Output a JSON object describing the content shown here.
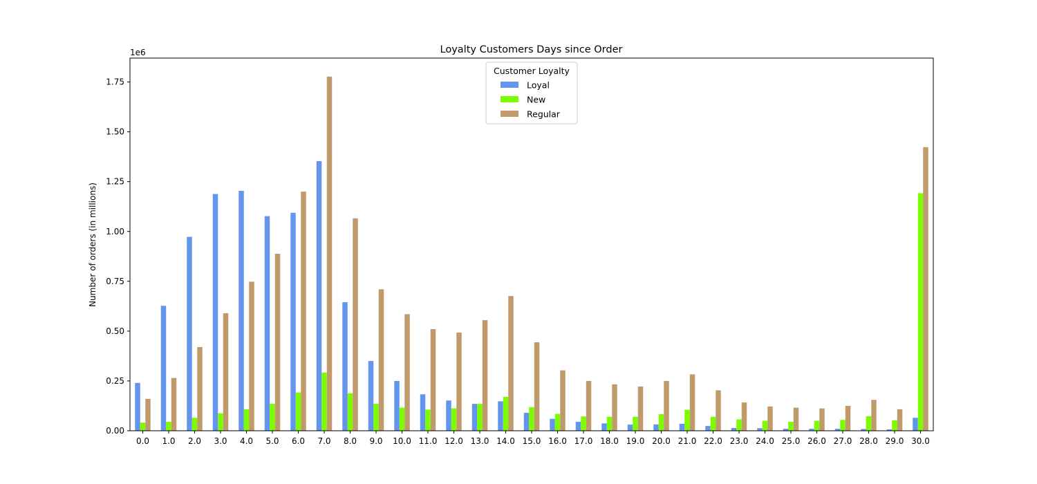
{
  "chart_data": {
    "type": "bar",
    "title": "Loyalty Customers Days since Order",
    "xlabel": "",
    "ylabel": "Number of orders (in millions)",
    "y_scale_label": "1e6",
    "y_multiplier": 1000000,
    "ylim": [
      0,
      1.87
    ],
    "yticks": [
      0.0,
      0.25,
      0.5,
      0.75,
      1.0,
      1.25,
      1.5,
      1.75
    ],
    "ytick_labels": [
      "0.00",
      "0.25",
      "0.50",
      "0.75",
      "1.00",
      "1.25",
      "1.50",
      "1.75"
    ],
    "grid": false,
    "legend": {
      "title": "Customer Loyalty",
      "placement": "upper-center"
    },
    "categories": [
      "0.0",
      "1.0",
      "2.0",
      "3.0",
      "4.0",
      "5.0",
      "6.0",
      "7.0",
      "8.0",
      "9.0",
      "10.0",
      "11.0",
      "12.0",
      "13.0",
      "14.0",
      "15.0",
      "16.0",
      "17.0",
      "18.0",
      "19.0",
      "20.0",
      "21.0",
      "22.0",
      "23.0",
      "24.0",
      "25.0",
      "26.0",
      "27.0",
      "28.0",
      "29.0",
      "30.0"
    ],
    "series": [
      {
        "name": "Loyal",
        "color": "#6495ED",
        "values": [
          0.24,
          0.627,
          0.973,
          1.188,
          1.204,
          1.077,
          1.094,
          1.353,
          0.645,
          0.35,
          0.25,
          0.183,
          0.152,
          0.135,
          0.148,
          0.09,
          0.06,
          0.045,
          0.037,
          0.031,
          0.032,
          0.035,
          0.024,
          0.014,
          0.013,
          0.01,
          0.01,
          0.01,
          0.009,
          0.007,
          0.065
        ]
      },
      {
        "name": "New",
        "color": "#7CFC00",
        "values": [
          0.041,
          0.045,
          0.065,
          0.088,
          0.108,
          0.135,
          0.192,
          0.292,
          0.188,
          0.135,
          0.116,
          0.106,
          0.113,
          0.135,
          0.17,
          0.118,
          0.085,
          0.072,
          0.07,
          0.07,
          0.083,
          0.105,
          0.07,
          0.057,
          0.05,
          0.045,
          0.05,
          0.055,
          0.073,
          0.053,
          1.192
        ]
      },
      {
        "name": "Regular",
        "color": "#C19A6B",
        "values": [
          0.16,
          0.265,
          0.42,
          0.59,
          0.748,
          0.888,
          1.2,
          1.777,
          1.066,
          0.71,
          0.585,
          0.51,
          0.493,
          0.555,
          0.676,
          0.444,
          0.303,
          0.25,
          0.233,
          0.222,
          0.25,
          0.283,
          0.203,
          0.142,
          0.122,
          0.116,
          0.112,
          0.125,
          0.155,
          0.108,
          1.423
        ]
      }
    ]
  }
}
